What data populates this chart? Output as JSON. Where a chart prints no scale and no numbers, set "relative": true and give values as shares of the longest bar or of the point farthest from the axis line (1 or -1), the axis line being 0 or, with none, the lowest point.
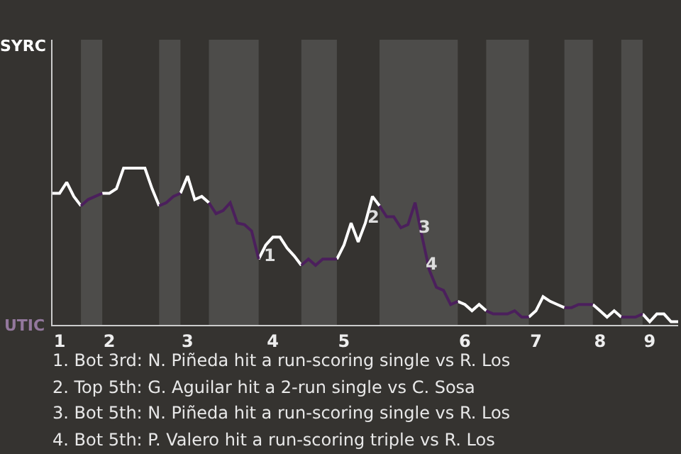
{
  "chart_data": {
    "type": "line",
    "relative": true,
    "categories": [
      null,
      "1",
      null,
      null,
      null,
      null,
      null,
      null,
      "2",
      null,
      null,
      null,
      null,
      null,
      null,
      null,
      null,
      null,
      null,
      "3",
      null,
      null,
      null,
      null,
      null,
      null,
      null,
      null,
      null,
      null,
      null,
      "4",
      null,
      null,
      null,
      null,
      null,
      null,
      null,
      null,
      null,
      "5",
      null,
      null,
      null,
      null,
      null,
      null,
      null,
      null,
      null,
      null,
      null,
      null,
      null,
      null,
      null,
      null,
      "6",
      null,
      null,
      null,
      null,
      null,
      null,
      null,
      null,
      null,
      "7",
      null,
      null,
      null,
      null,
      null,
      null,
      null,
      null,
      "8",
      null,
      null,
      null,
      null,
      null,
      null,
      "9",
      null,
      null,
      null,
      null
    ],
    "series": [
      {
        "color": "#ffffff",
        "values": [
          0.84,
          0.84,
          0.91,
          0.82,
          0.76,
          null,
          null,
          0.84,
          0.84,
          0.87,
          1,
          1,
          1,
          1,
          0.87,
          0.76,
          null,
          null,
          0.84,
          0.95,
          0.8,
          0.82,
          0.78,
          null,
          null,
          null,
          null,
          null,
          null,
          0.42,
          0.51,
          0.56,
          0.56,
          0.49,
          0.44,
          0.38,
          null,
          null,
          null,
          null,
          0.42,
          0.51,
          0.65,
          0.53,
          0.65,
          0.82,
          0.76,
          null,
          null,
          null,
          null,
          null,
          null,
          null,
          null,
          null,
          null,
          0.15,
          0.13,
          0.09,
          0.13,
          0.09,
          null,
          null,
          null,
          null,
          null,
          0.05,
          0.09,
          0.18,
          0.15,
          0.13,
          0.11,
          null,
          null,
          null,
          0.13,
          0.09,
          0.05,
          0.09,
          0.05,
          null,
          null,
          0.07,
          0.02,
          0.07,
          0.07,
          0.02,
          0.02
        ]
      },
      {
        "color": "#4b1f5c",
        "values": [
          null,
          null,
          null,
          null,
          0.76,
          0.8,
          0.82,
          0.84,
          null,
          null,
          null,
          null,
          null,
          null,
          null,
          0.76,
          0.78,
          0.82,
          0.84,
          null,
          null,
          null,
          0.78,
          0.71,
          0.73,
          0.78,
          0.65,
          0.64,
          0.6,
          0.42,
          null,
          null,
          null,
          null,
          null,
          0.38,
          0.42,
          0.38,
          0.42,
          0.42,
          0.42,
          null,
          null,
          null,
          null,
          null,
          0.76,
          0.69,
          0.69,
          0.62,
          0.64,
          0.78,
          0.56,
          0.35,
          0.24,
          0.22,
          0.13,
          0.15,
          null,
          null,
          null,
          0.09,
          0.07,
          0.07,
          0.07,
          0.09,
          0.05,
          0.05,
          null,
          null,
          null,
          null,
          0.11,
          0.11,
          0.13,
          0.13,
          0.13,
          null,
          null,
          null,
          0.05,
          0.05,
          0.05,
          0.07,
          null,
          null,
          null,
          null,
          null
        ]
      }
    ],
    "tick_labels": "x",
    "marker": "none",
    "line_style": "solid",
    "annotations": [
      "SYRC",
      "UTIC",
      "1",
      "2",
      "3",
      "4",
      "1. Bot 3rd: N. Piñeda hit a run-scoring single vs R. Los",
      "2. Top 5th: G. Aguilar hit a 2-run single vs C. Sosa",
      "3. Bot 5th: N. Piñeda hit a run-scoring single vs R. Los",
      "4. Bot 5th: P. Valero hit a run-scoring triple vs R. Los"
    ]
  }
}
